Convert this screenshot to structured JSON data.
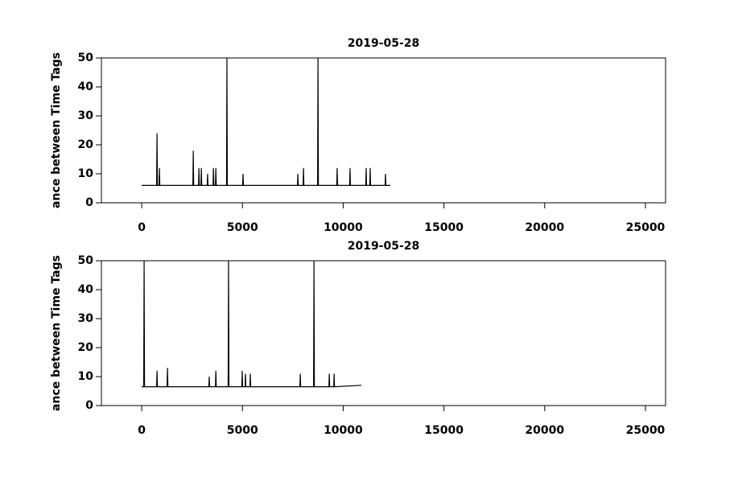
{
  "chart_data": [
    {
      "type": "line",
      "title": "2019-05-28",
      "y_label": "ance between Time Tags",
      "x": [
        0,
        740,
        760,
        780,
        860,
        880,
        900,
        2540,
        2560,
        2580,
        2820,
        2840,
        2860,
        2940,
        2960,
        2980,
        3250,
        3270,
        3290,
        3540,
        3560,
        3580,
        3660,
        3680,
        3700,
        4210,
        4230,
        4250,
        5010,
        5030,
        5050,
        7730,
        7750,
        7770,
        8010,
        8030,
        8050,
        8730,
        8750,
        8770,
        9680,
        9700,
        9720,
        10320,
        10340,
        10360,
        11120,
        11140,
        11160,
        11320,
        11340,
        11360,
        12080,
        12100,
        12120,
        12340
      ],
      "values": [
        6,
        6,
        24,
        6,
        6,
        12,
        6,
        6,
        18,
        6,
        6,
        12,
        6,
        6,
        12,
        6,
        6,
        10,
        6,
        6,
        12,
        6,
        6,
        12,
        6,
        6,
        50,
        6,
        6,
        10,
        6,
        6,
        10,
        6,
        6,
        12,
        6,
        6,
        50,
        6,
        6,
        12,
        6,
        6,
        12,
        6,
        6,
        12,
        6,
        6,
        12,
        6,
        6,
        10,
        6,
        6
      ],
      "color": "#000000",
      "xlim": [
        -2000,
        26000
      ],
      "xticks": [
        0,
        5000,
        10000,
        15000,
        20000,
        25000
      ],
      "ylim": [
        0,
        50
      ],
      "yticks": [
        0,
        10,
        20,
        30,
        40,
        50
      ]
    },
    {
      "type": "line",
      "title": "2019-05-28",
      "y_label": "ance between Time Tags",
      "x": [
        0,
        100,
        120,
        140,
        740,
        760,
        780,
        1260,
        1280,
        1300,
        3330,
        3350,
        3370,
        3660,
        3680,
        3700,
        4290,
        4310,
        4330,
        4970,
        4990,
        5010,
        5130,
        5150,
        5170,
        5370,
        5390,
        5410,
        7850,
        7870,
        7890,
        8530,
        8550,
        8570,
        9290,
        9310,
        9330,
        9530,
        9550,
        9570,
        10900
      ],
      "values": [
        6.5,
        6.5,
        50,
        6.5,
        6.5,
        12,
        6.5,
        6.5,
        13,
        6.5,
        6.5,
        10,
        6.5,
        6.5,
        12,
        6.5,
        6.5,
        50,
        6.5,
        6.5,
        12,
        6.5,
        6.5,
        11,
        6.5,
        6.5,
        11,
        6.5,
        6.5,
        11,
        6.5,
        6.5,
        50,
        6.5,
        6.5,
        11,
        6.5,
        6.5,
        11,
        6.5,
        7
      ],
      "color": "#000000",
      "xlim": [
        -2000,
        26000
      ],
      "xticks": [
        0,
        5000,
        10000,
        15000,
        20000,
        25000
      ],
      "ylim": [
        0,
        50
      ],
      "yticks": [
        0,
        10,
        20,
        30,
        40,
        50
      ]
    }
  ]
}
